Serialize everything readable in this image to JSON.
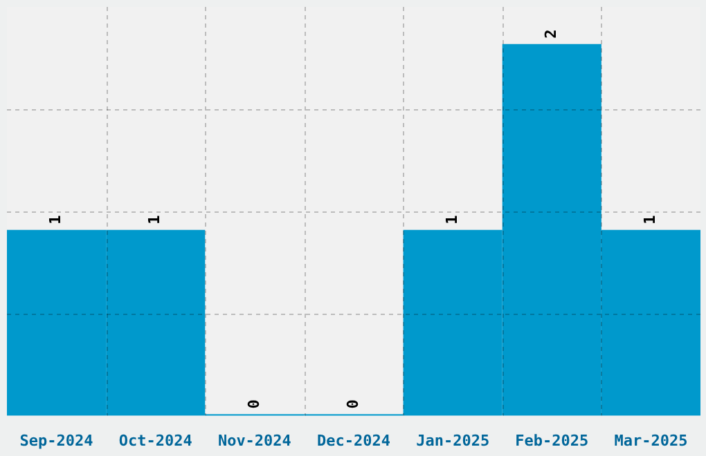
{
  "chart_data": {
    "type": "bar",
    "categories": [
      "Sep-2024",
      "Oct-2024",
      "Nov-2024",
      "Dec-2024",
      "Jan-2025",
      "Feb-2025",
      "Mar-2025"
    ],
    "values": [
      1,
      1,
      0,
      0,
      1,
      2,
      1
    ],
    "color": "#0099cc",
    "ylim": [
      0,
      2.2
    ],
    "yticks": [
      {
        "value": 0.55,
        "label": null
      },
      {
        "value": 1.1,
        "label": null
      },
      {
        "value": 1.65,
        "label": null
      }
    ],
    "tick_labels": "x",
    "grid": true,
    "data_labels": true
  }
}
